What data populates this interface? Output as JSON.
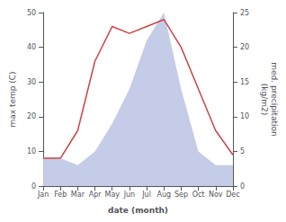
{
  "chart_data": {
    "type": "line",
    "xlabel": "date (month)",
    "ylabel": "max temp (C)",
    "y2label": "med. precipitation\n(kg/m2)",
    "categories": [
      "Jan",
      "Feb",
      "Mar",
      "Apr",
      "May",
      "Jun",
      "Jul",
      "Aug",
      "Sep",
      "Oct",
      "Nov",
      "Dec"
    ],
    "series": [
      {
        "type": "area",
        "axis": "y2",
        "color": "#c5cce8",
        "values": [
          4,
          4,
          3,
          5,
          9,
          14,
          21,
          25,
          14,
          5,
          3,
          3
        ]
      },
      {
        "type": "line",
        "color": "#cc4444",
        "values": [
          8,
          8,
          16,
          36,
          46,
          44,
          46,
          48,
          40,
          28,
          16,
          9
        ]
      }
    ],
    "ylim": [
      0,
      50
    ],
    "yticks": [
      0,
      10,
      20,
      30,
      40,
      50
    ],
    "y2lim": [
      0,
      25
    ],
    "y2ticks": [
      0,
      5,
      10,
      15,
      20,
      25
    ],
    "grid": false
  }
}
